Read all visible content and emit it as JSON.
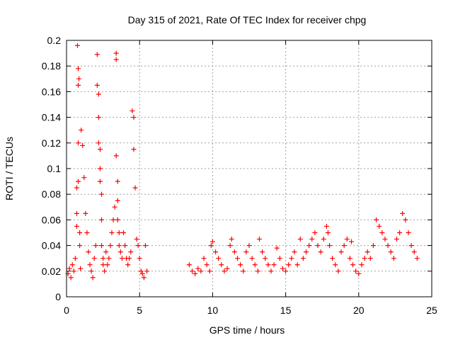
{
  "chart_data": {
    "type": "scatter",
    "title": "Day 315 of 2021, Rate Of TEC Index for receiver chpg",
    "xlabel": "GPS time / hours",
    "ylabel": "ROTI / TECUs",
    "xlim": [
      0,
      25
    ],
    "ylim": [
      0,
      0.2
    ],
    "xticks": [
      "0",
      "5",
      "10",
      "15",
      "20",
      "25"
    ],
    "yticks": [
      "0",
      "0.02",
      "0.04",
      "0.06",
      "0.08",
      "0.1",
      "0.12",
      "0.14",
      "0.16",
      "0.18",
      "0.2"
    ],
    "grid": true,
    "marker": "+",
    "color": "#ff0000",
    "x": [
      0.1,
      0.2,
      0.3,
      0.4,
      0.5,
      0.6,
      0.7,
      0.7,
      0.7,
      0.75,
      0.8,
      0.8,
      0.8,
      0.8,
      0.85,
      0.9,
      0.9,
      0.95,
      1.0,
      1.1,
      1.2,
      1.3,
      1.4,
      1.5,
      1.6,
      1.7,
      1.8,
      1.9,
      2.0,
      2.1,
      2.1,
      2.2,
      2.2,
      2.2,
      2.3,
      2.3,
      2.3,
      2.4,
      2.4,
      2.4,
      2.5,
      2.5,
      2.6,
      2.7,
      2.8,
      2.9,
      3.0,
      3.1,
      3.2,
      3.3,
      3.4,
      3.4,
      3.4,
      3.5,
      3.5,
      3.5,
      3.6,
      3.6,
      3.7,
      3.8,
      3.9,
      4.0,
      4.1,
      4.2,
      4.3,
      4.4,
      4.5,
      4.6,
      4.6,
      4.7,
      4.8,
      4.9,
      5.0,
      5.1,
      5.2,
      5.3,
      5.4,
      5.5,
      8.4,
      8.6,
      8.8,
      9.0,
      9.2,
      9.4,
      9.6,
      9.8,
      9.9,
      10.0,
      10.2,
      10.4,
      10.6,
      10.8,
      11.0,
      11.2,
      11.3,
      11.5,
      11.7,
      11.9,
      12.1,
      12.3,
      12.5,
      12.7,
      12.9,
      13.1,
      13.2,
      13.4,
      13.6,
      13.8,
      14.0,
      14.2,
      14.4,
      14.6,
      14.8,
      15.0,
      15.2,
      15.4,
      15.6,
      15.8,
      16.0,
      16.2,
      16.4,
      16.6,
      16.8,
      17.0,
      17.2,
      17.4,
      17.6,
      17.8,
      17.9,
      18.0,
      18.2,
      18.4,
      18.6,
      18.8,
      19.0,
      19.2,
      19.4,
      19.5,
      19.6,
      19.8,
      20.0,
      20.2,
      20.4,
      20.6,
      20.8,
      21.0,
      21.2,
      21.4,
      21.6,
      21.8,
      22.0,
      22.2,
      22.4,
      22.6,
      22.8,
      23.0,
      23.2,
      23.4,
      23.6,
      23.8,
      24.0
    ],
    "y": [
      0.018,
      0.022,
      0.015,
      0.025,
      0.02,
      0.03,
      0.085,
      0.065,
      0.055,
      0.196,
      0.178,
      0.165,
      0.12,
      0.09,
      0.17,
      0.05,
      0.04,
      0.022,
      0.13,
      0.118,
      0.093,
      0.065,
      0.05,
      0.035,
      0.025,
      0.02,
      0.015,
      0.03,
      0.04,
      0.189,
      0.165,
      0.158,
      0.14,
      0.12,
      0.115,
      0.1,
      0.09,
      0.08,
      0.06,
      0.04,
      0.03,
      0.025,
      0.02,
      0.035,
      0.025,
      0.03,
      0.04,
      0.05,
      0.06,
      0.07,
      0.19,
      0.185,
      0.11,
      0.09,
      0.075,
      0.06,
      0.05,
      0.04,
      0.035,
      0.03,
      0.05,
      0.04,
      0.03,
      0.025,
      0.03,
      0.035,
      0.145,
      0.14,
      0.115,
      0.085,
      0.045,
      0.04,
      0.03,
      0.02,
      0.018,
      0.015,
      0.04,
      0.02,
      0.025,
      0.02,
      0.018,
      0.022,
      0.02,
      0.03,
      0.025,
      0.02,
      0.04,
      0.043,
      0.035,
      0.03,
      0.025,
      0.02,
      0.022,
      0.04,
      0.045,
      0.035,
      0.03,
      0.025,
      0.02,
      0.035,
      0.04,
      0.03,
      0.025,
      0.02,
      0.045,
      0.035,
      0.03,
      0.025,
      0.02,
      0.025,
      0.038,
      0.03,
      0.022,
      0.02,
      0.025,
      0.03,
      0.035,
      0.025,
      0.045,
      0.03,
      0.035,
      0.04,
      0.045,
      0.05,
      0.04,
      0.035,
      0.045,
      0.055,
      0.05,
      0.04,
      0.03,
      0.025,
      0.02,
      0.035,
      0.04,
      0.045,
      0.03,
      0.043,
      0.025,
      0.02,
      0.018,
      0.025,
      0.03,
      0.035,
      0.03,
      0.04,
      0.06,
      0.055,
      0.05,
      0.045,
      0.04,
      0.035,
      0.03,
      0.045,
      0.05,
      0.065,
      0.06,
      0.05,
      0.04,
      0.035,
      0.03
    ]
  }
}
